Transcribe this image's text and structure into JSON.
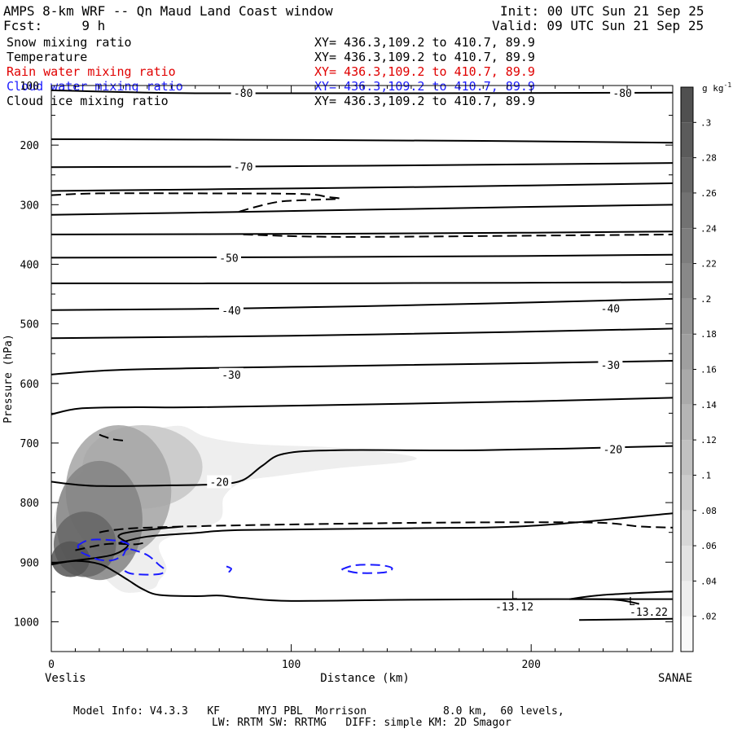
{
  "header": {
    "title": "AMPS 8-km WRF -- Qn Maud Land Coast window",
    "init": "Init: 00 UTC Sun 21 Sep 25",
    "fcst": "Fcst:     9 h",
    "valid": "Valid: 09 UTC Sun 21 Sep 25"
  },
  "legend": [
    {
      "name": "Snow mixing ratio",
      "xy": "XY= 436.3,109.2 to 410.7, 89.9",
      "color": "#000000"
    },
    {
      "name": "Temperature",
      "xy": "XY= 436.3,109.2 to 410.7, 89.9",
      "color": "#000000"
    },
    {
      "name": "Rain water mixing ratio",
      "xy": "XY= 436.3,109.2 to 410.7, 89.9",
      "color": "#e00000"
    },
    {
      "name": "Cloud water mixing ratio",
      "xy": "XY= 436.3,109.2 to 410.7, 89.9",
      "color": "#1a1aff"
    },
    {
      "name": "Cloud ice mixing ratio",
      "xy": "XY= 436.3,109.2 to 410.7, 89.9",
      "color": "#000000"
    }
  ],
  "footer": {
    "line1": "Model Info: V4.3.3   KF      MYJ PBL  Morrison            8.0 km,  60 levels,",
    "line2": "LW: RRTM SW: RRTMG   DIFF: simple KM: 2D Smagor"
  },
  "colors": {
    "axis": "#000000",
    "cloud_water": "#1a1aff",
    "rain": "#e00000",
    "shade_max": "#4a4a4a"
  },
  "chart_data": {
    "type": "cross-section contour",
    "xlabel": "Distance (km)",
    "ylabel": "Pressure (hPa)",
    "xlim": [
      0,
      259
    ],
    "ylim": [
      1050,
      100
    ],
    "x_ticks": [
      0,
      100,
      200
    ],
    "y_ticks": [
      100,
      200,
      300,
      400,
      500,
      600,
      700,
      800,
      900,
      1000
    ],
    "endpoints": {
      "left": "Veslis",
      "right": "SANAE"
    },
    "colorbar": {
      "units": "g kg",
      "units_exp": "-1",
      "ticks": [
        ".3",
        ".28",
        ".26",
        ".24",
        ".22",
        ".2",
        ".18",
        ".16",
        ".14",
        ".12",
        ".1",
        ".08",
        ".06",
        ".04",
        ".02"
      ],
      "tick_values": [
        0.3,
        0.28,
        0.26,
        0.24,
        0.22,
        0.2,
        0.18,
        0.16,
        0.14,
        0.12,
        0.1,
        0.08,
        0.06,
        0.04,
        0.02
      ],
      "range": [
        0,
        0.32
      ]
    },
    "temperature_contours": [
      {
        "pts": [
          [
            0,
            108
          ],
          [
            60,
            113
          ],
          [
            150,
            113
          ],
          [
            259,
            112
          ]
        ]
      },
      {
        "pts": [
          [
            0,
            190
          ],
          [
            80,
            191
          ],
          [
            180,
            193
          ],
          [
            259,
            196
          ]
        ]
      },
      {
        "pts": [
          [
            0,
            237
          ],
          [
            80,
            236
          ],
          [
            180,
            233
          ],
          [
            259,
            230
          ]
        ]
      },
      {
        "pts": [
          [
            0,
            277
          ],
          [
            70,
            274
          ],
          [
            160,
            270
          ],
          [
            259,
            264
          ]
        ]
      },
      {
        "pts": [
          [
            0,
            317
          ],
          [
            80,
            312
          ],
          [
            180,
            305
          ],
          [
            259,
            300
          ]
        ]
      },
      {
        "pts": [
          [
            0,
            350
          ],
          [
            100,
            349
          ],
          [
            200,
            347
          ],
          [
            259,
            345
          ]
        ]
      },
      {
        "pts": [
          [
            0,
            389
          ],
          [
            100,
            388
          ],
          [
            200,
            386
          ],
          [
            259,
            384
          ]
        ]
      },
      {
        "pts": [
          [
            0,
            432
          ],
          [
            100,
            432
          ],
          [
            200,
            431
          ],
          [
            259,
            430
          ]
        ]
      },
      {
        "pts": [
          [
            0,
            477
          ],
          [
            80,
            474
          ],
          [
            180,
            466
          ],
          [
            259,
            458
          ]
        ]
      },
      {
        "pts": [
          [
            0,
            524
          ],
          [
            100,
            520
          ],
          [
            200,
            513
          ],
          [
            259,
            508
          ]
        ]
      },
      {
        "pts": [
          [
            0,
            585
          ],
          [
            30,
            577
          ],
          [
            100,
            572
          ],
          [
            200,
            566
          ],
          [
            259,
            562
          ]
        ]
      },
      {
        "pts": [
          [
            0,
            652
          ],
          [
            12,
            642
          ],
          [
            35,
            640
          ],
          [
            60,
            640
          ],
          [
            120,
            636
          ],
          [
            200,
            630
          ],
          [
            259,
            624
          ]
        ]
      },
      {
        "pts": [
          [
            0,
            765
          ],
          [
            18,
            772
          ],
          [
            50,
            771
          ],
          [
            70,
            769
          ],
          [
            80,
            762
          ],
          [
            88,
            738
          ],
          [
            97,
            718
          ],
          [
            120,
            712
          ],
          [
            180,
            712
          ],
          [
            259,
            705
          ]
        ]
      },
      {
        "pts": [
          [
            28,
            868
          ],
          [
            40,
            857
          ],
          [
            60,
            851
          ],
          [
            80,
            846
          ],
          [
            150,
            843
          ],
          [
            200,
            839
          ],
          [
            259,
            818
          ]
        ]
      },
      {
        "pts": [
          [
            0,
            904
          ],
          [
            10,
            898
          ],
          [
            20,
            903
          ],
          [
            26,
            915
          ],
          [
            32,
            930
          ],
          [
            38,
            945
          ],
          [
            45,
            955
          ],
          [
            60,
            957
          ],
          [
            70,
            956
          ],
          [
            80,
            960
          ],
          [
            100,
            965
          ],
          [
            150,
            963
          ],
          [
            210,
            962
          ],
          [
            259,
            962
          ]
        ]
      },
      {
        "pts": [
          [
            0,
            902
          ],
          [
            20,
            892
          ],
          [
            28,
            884
          ],
          [
            32,
            870
          ],
          [
            28,
            856
          ],
          [
            35,
            848
          ],
          [
            55,
            840
          ]
        ]
      },
      {
        "pts": [
          [
            216,
            962
          ],
          [
            230,
            955
          ],
          [
            259,
            949
          ]
        ]
      },
      {
        "pts": [
          [
            216,
            962
          ],
          [
            235,
            963
          ],
          [
            245,
            970
          ]
        ]
      },
      {
        "pts": [
          [
            220,
            997
          ],
          [
            259,
            995
          ]
        ]
      }
    ],
    "temperature_labels": [
      {
        "text": "-80",
        "x": 80,
        "p": 112
      },
      {
        "text": "-80",
        "x": 238,
        "p": 112
      },
      {
        "text": "-70",
        "x": 80,
        "p": 236
      },
      {
        "text": "-50",
        "x": 74,
        "p": 389
      },
      {
        "text": "-40",
        "x": 75,
        "p": 477
      },
      {
        "text": "-40",
        "x": 233,
        "p": 474
      },
      {
        "text": "-30",
        "x": 75,
        "p": 585
      },
      {
        "text": "-30",
        "x": 233,
        "p": 569
      },
      {
        "text": "-20",
        "x": 234,
        "p": 710
      },
      {
        "text": "-20",
        "x": 70,
        "p": 765
      }
    ],
    "ice_contours": [
      {
        "pts": [
          [
            0,
            284
          ],
          [
            20,
            281
          ],
          [
            60,
            281
          ],
          [
            104,
            282
          ],
          [
            115,
            287
          ],
          [
            120,
            290
          ],
          [
            108,
            292
          ],
          [
            95,
            295
          ],
          [
            84,
            305
          ],
          [
            78,
            312
          ]
        ]
      },
      {
        "pts": [
          [
            80,
            350
          ],
          [
            120,
            354
          ],
          [
            200,
            352
          ],
          [
            259,
            350
          ]
        ]
      },
      {
        "pts": [
          [
            20,
            686
          ],
          [
            25,
            693
          ],
          [
            30,
            696
          ]
        ]
      },
      {
        "pts": [
          [
            10,
            880
          ],
          [
            18,
            873
          ],
          [
            25,
            869
          ],
          [
            35,
            870
          ],
          [
            40,
            866
          ]
        ]
      },
      {
        "pts": [
          [
            20,
            850
          ],
          [
            26,
            846
          ],
          [
            40,
            842
          ],
          [
            80,
            838
          ],
          [
            150,
            834
          ],
          [
            200,
            833
          ],
          [
            230,
            834
          ],
          [
            245,
            840
          ],
          [
            259,
            842
          ]
        ]
      }
    ],
    "cloud_water_contours": [
      {
        "pts": [
          [
            11,
            872
          ],
          [
            14,
            865
          ],
          [
            18,
            862
          ],
          [
            25,
            863
          ],
          [
            30,
            866
          ],
          [
            33,
            873
          ],
          [
            31,
            880
          ],
          [
            30,
            888
          ],
          [
            28,
            893
          ],
          [
            25,
            897
          ],
          [
            20,
            896
          ],
          [
            16,
            890
          ],
          [
            12,
            882
          ],
          [
            11,
            872
          ]
        ]
      },
      {
        "pts": [
          [
            33,
            878
          ],
          [
            40,
            888
          ],
          [
            45,
            905
          ],
          [
            47,
            912
          ],
          [
            46,
            919
          ],
          [
            40,
            921
          ],
          [
            33,
            919
          ],
          [
            30,
            913
          ]
        ]
      },
      {
        "pts": [
          [
            73,
            907
          ],
          [
            75,
            911
          ],
          [
            74,
            917
          ],
          [
            74,
            921
          ]
        ]
      },
      {
        "pts": [
          [
            121,
            912
          ],
          [
            127,
            905
          ],
          [
            137,
            905
          ],
          [
            142,
            910
          ],
          [
            139,
            917
          ],
          [
            128,
            918
          ],
          [
            121,
            912
          ]
        ]
      }
    ],
    "snow_field": {
      "core": [
        {
          "x": 8,
          "p": 895,
          "rx": 8,
          "rp": 30,
          "v": 0.3
        },
        {
          "x": 14,
          "p": 870,
          "rx": 13,
          "rp": 55,
          "v": 0.27
        },
        {
          "x": 20,
          "p": 830,
          "rx": 18,
          "rp": 100,
          "v": 0.22
        },
        {
          "x": 28,
          "p": 780,
          "rx": 22,
          "rp": 110,
          "v": 0.16
        },
        {
          "x": 38,
          "p": 740,
          "rx": 25,
          "rp": 70,
          "v": 0.1
        }
      ],
      "outer": [
        [
          0,
          840
        ],
        [
          5,
          780
        ],
        [
          15,
          740
        ],
        [
          20,
          700
        ],
        [
          30,
          685
        ],
        [
          45,
          675
        ],
        [
          55,
          672
        ],
        [
          65,
          690
        ],
        [
          85,
          702
        ],
        [
          120,
          708
        ],
        [
          150,
          722
        ],
        [
          147,
          732
        ],
        [
          120,
          742
        ],
        [
          95,
          755
        ],
        [
          80,
          765
        ],
        [
          72,
          790
        ],
        [
          70,
          830
        ],
        [
          55,
          850
        ],
        [
          45,
          870
        ],
        [
          48,
          910
        ],
        [
          45,
          930
        ],
        [
          42,
          945
        ],
        [
          30,
          950
        ],
        [
          20,
          920
        ],
        [
          10,
          900
        ],
        [
          0,
          900
        ]
      ]
    },
    "annotations": [
      {
        "text": "L",
        "x": 193,
        "p": 962
      },
      {
        "text": "-13.12",
        "x": 193,
        "p": 981
      },
      {
        "text": "L",
        "x": 242,
        "p": 972
      },
      {
        "text": "-13.22",
        "x": 249,
        "p": 990
      }
    ]
  }
}
